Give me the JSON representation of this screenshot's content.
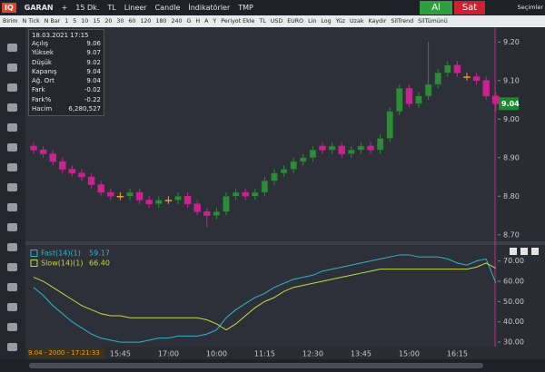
{
  "toolbar": {
    "logo": "IQ",
    "symbol": "GARAN",
    "items": [
      "+",
      "15 Dk.",
      "TL",
      "Lineer",
      "Candle",
      "İndikatörler",
      "TMP"
    ],
    "buy": "Al",
    "sell": "Sat",
    "menu": "Seçimler"
  },
  "period_bar": {
    "items": [
      "Birim",
      "N Tick",
      "N Bar",
      "1",
      "5",
      "10",
      "15",
      "20",
      "30",
      "60",
      "120",
      "180",
      "240",
      "G",
      "H",
      "A",
      "Y",
      "Periyot Ekle",
      "TL",
      "USD",
      "EURO",
      "Lin",
      "Log",
      "Yüz",
      "Uzak",
      "Kaydır",
      "SilTrend",
      "SilTümünü"
    ]
  },
  "info_box": {
    "date": "18.03.2021 17:15",
    "rows": [
      {
        "label": "Açılış",
        "value": 9.06
      },
      {
        "label": "Yüksek",
        "value": 9.07
      },
      {
        "label": "Düşük",
        "value": 9.02
      },
      {
        "label": "Kapanış",
        "value": 9.04
      },
      {
        "label": "Ağ. Ort",
        "value": 9.04
      },
      {
        "label": "Fark",
        "value": -0.02
      },
      {
        "label": "Fark%",
        "value": -0.22
      },
      {
        "label": "Hacim",
        "value": "6,280,527"
      }
    ]
  },
  "status": "9.04 - 2000 - 17:21:33",
  "chart_data": [
    {
      "type": "candlestick",
      "categories": [
        null,
        null,
        null,
        null,
        null,
        null,
        null,
        null,
        null,
        "15:45",
        null,
        null,
        null,
        null,
        "17:00",
        null,
        null,
        null,
        null,
        "10:00",
        null,
        null,
        null,
        null,
        "11:15",
        null,
        null,
        null,
        null,
        "12:30",
        null,
        null,
        null,
        null,
        "13:45",
        null,
        null,
        null,
        null,
        "15:00",
        null,
        null,
        null,
        null,
        "16:15",
        null,
        null,
        null,
        null
      ],
      "open": [
        8.93,
        8.92,
        8.91,
        8.89,
        8.87,
        8.86,
        8.85,
        8.83,
        8.81,
        8.8,
        8.8,
        8.81,
        8.79,
        8.78,
        8.79,
        8.79,
        8.8,
        8.78,
        8.76,
        8.75,
        8.76,
        8.8,
        8.81,
        8.8,
        8.81,
        8.84,
        8.86,
        8.87,
        8.89,
        8.9,
        8.93,
        8.92,
        8.93,
        8.91,
        8.92,
        8.93,
        8.92,
        8.95,
        9.02,
        9.08,
        9.04,
        9.06,
        9.09,
        9.12,
        9.14,
        9.11,
        9.11,
        9.1,
        9.06
      ],
      "high": [
        8.94,
        8.93,
        8.92,
        8.9,
        8.88,
        8.87,
        8.86,
        8.84,
        8.82,
        8.81,
        8.82,
        8.82,
        8.8,
        8.8,
        8.8,
        8.81,
        8.81,
        8.79,
        8.77,
        8.77,
        8.81,
        8.82,
        8.82,
        8.82,
        8.85,
        8.87,
        8.88,
        8.9,
        8.91,
        8.93,
        8.94,
        8.94,
        8.94,
        8.93,
        8.94,
        8.94,
        8.96,
        9.03,
        9.09,
        9.09,
        9.07,
        9.2,
        9.13,
        9.15,
        9.15,
        9.12,
        9.12,
        9.11,
        9.07
      ],
      "low": [
        8.91,
        8.9,
        8.88,
        8.86,
        8.85,
        8.84,
        8.82,
        8.8,
        8.79,
        8.79,
        8.79,
        8.78,
        8.77,
        8.77,
        8.78,
        8.78,
        8.77,
        8.75,
        8.72,
        8.74,
        8.75,
        8.79,
        8.79,
        8.79,
        8.8,
        8.83,
        8.85,
        8.86,
        8.88,
        8.89,
        8.91,
        8.91,
        8.9,
        8.9,
        8.91,
        8.91,
        8.91,
        8.94,
        9.01,
        9.03,
        9.03,
        9.05,
        9.08,
        9.11,
        9.11,
        9.1,
        9.09,
        9.05,
        9.02
      ],
      "close": [
        8.92,
        8.91,
        8.89,
        8.87,
        8.86,
        8.85,
        8.83,
        8.81,
        8.8,
        8.8,
        8.81,
        8.79,
        8.78,
        8.79,
        8.79,
        8.8,
        8.78,
        8.76,
        8.75,
        8.76,
        8.8,
        8.81,
        8.8,
        8.81,
        8.84,
        8.86,
        8.87,
        8.89,
        8.9,
        8.92,
        8.92,
        8.93,
        8.91,
        8.92,
        8.93,
        8.92,
        8.95,
        9.02,
        9.08,
        9.04,
        9.06,
        9.09,
        9.12,
        9.14,
        9.12,
        9.11,
        9.1,
        9.06,
        9.04
      ],
      "up_color": "#2f8a3a",
      "down_color": "#c8238f",
      "flat_color": "#f0a020",
      "ylim": [
        8.683,
        9.236
      ],
      "yticks": [
        {
          "value": 8.7,
          "label": "8.70"
        },
        {
          "value": 8.8,
          "label": "8.80"
        },
        {
          "value": 8.9,
          "label": "8.90"
        },
        {
          "value": 9.0,
          "label": "9.00"
        },
        {
          "value": 9.1,
          "label": "9.10"
        },
        {
          "value": 9.2,
          "label": "9.20"
        }
      ],
      "last_price": 9.04
    },
    {
      "type": "line",
      "series": [
        {
          "name": "Fast(14)(1)",
          "color": "#2bb5c8",
          "values": [
            57,
            53,
            48,
            44,
            40,
            37,
            34,
            32,
            31,
            30,
            30,
            30,
            31,
            32,
            32,
            33,
            33,
            33,
            34,
            36,
            42,
            46,
            49,
            52,
            54,
            57,
            59,
            61,
            62,
            63,
            65,
            66,
            67,
            68,
            69,
            70,
            71,
            72,
            73,
            73,
            72,
            72,
            72,
            71,
            69,
            68,
            70,
            71,
            59.17
          ],
          "value_labels": [
            null,
            null,
            null,
            null,
            null,
            null,
            null,
            null,
            null,
            null,
            null,
            null,
            null,
            null,
            null,
            null,
            null,
            null,
            null,
            null,
            null,
            null,
            null,
            null,
            null,
            null,
            null,
            null,
            null,
            null,
            null,
            null,
            null,
            null,
            null,
            null,
            null,
            null,
            null,
            null,
            null,
            null,
            null,
            null,
            null,
            null,
            null,
            null,
            "59.17"
          ]
        },
        {
          "name": "Slow(14)(1)",
          "color": "#c9d93a",
          "values": [
            62,
            60,
            57,
            54,
            51,
            48,
            46,
            44,
            43,
            43,
            42,
            42,
            42,
            42,
            42,
            42,
            42,
            42,
            41,
            39,
            36,
            39,
            43,
            47,
            50,
            52,
            55,
            57,
            58,
            59,
            60,
            61,
            62,
            63,
            64,
            65,
            66,
            66,
            66,
            66,
            66,
            66,
            66,
            66,
            66,
            66,
            67,
            69,
            66.4
          ],
          "value_labels": [
            null,
            null,
            null,
            null,
            null,
            null,
            null,
            null,
            null,
            null,
            null,
            null,
            null,
            null,
            null,
            null,
            null,
            null,
            null,
            null,
            null,
            null,
            null,
            null,
            null,
            null,
            null,
            null,
            null,
            null,
            null,
            null,
            null,
            null,
            null,
            null,
            null,
            null,
            null,
            null,
            null,
            null,
            null,
            null,
            null,
            null,
            null,
            null,
            "66.40"
          ]
        }
      ],
      "ylim": [
        27.8,
        77
      ],
      "yticks": [
        {
          "value": 30,
          "label": "30.00"
        },
        {
          "value": 40,
          "label": "40.00"
        },
        {
          "value": 50,
          "label": "50.00"
        },
        {
          "value": 60,
          "label": "60.00"
        },
        {
          "value": 70,
          "label": "70.00"
        }
      ]
    }
  ]
}
